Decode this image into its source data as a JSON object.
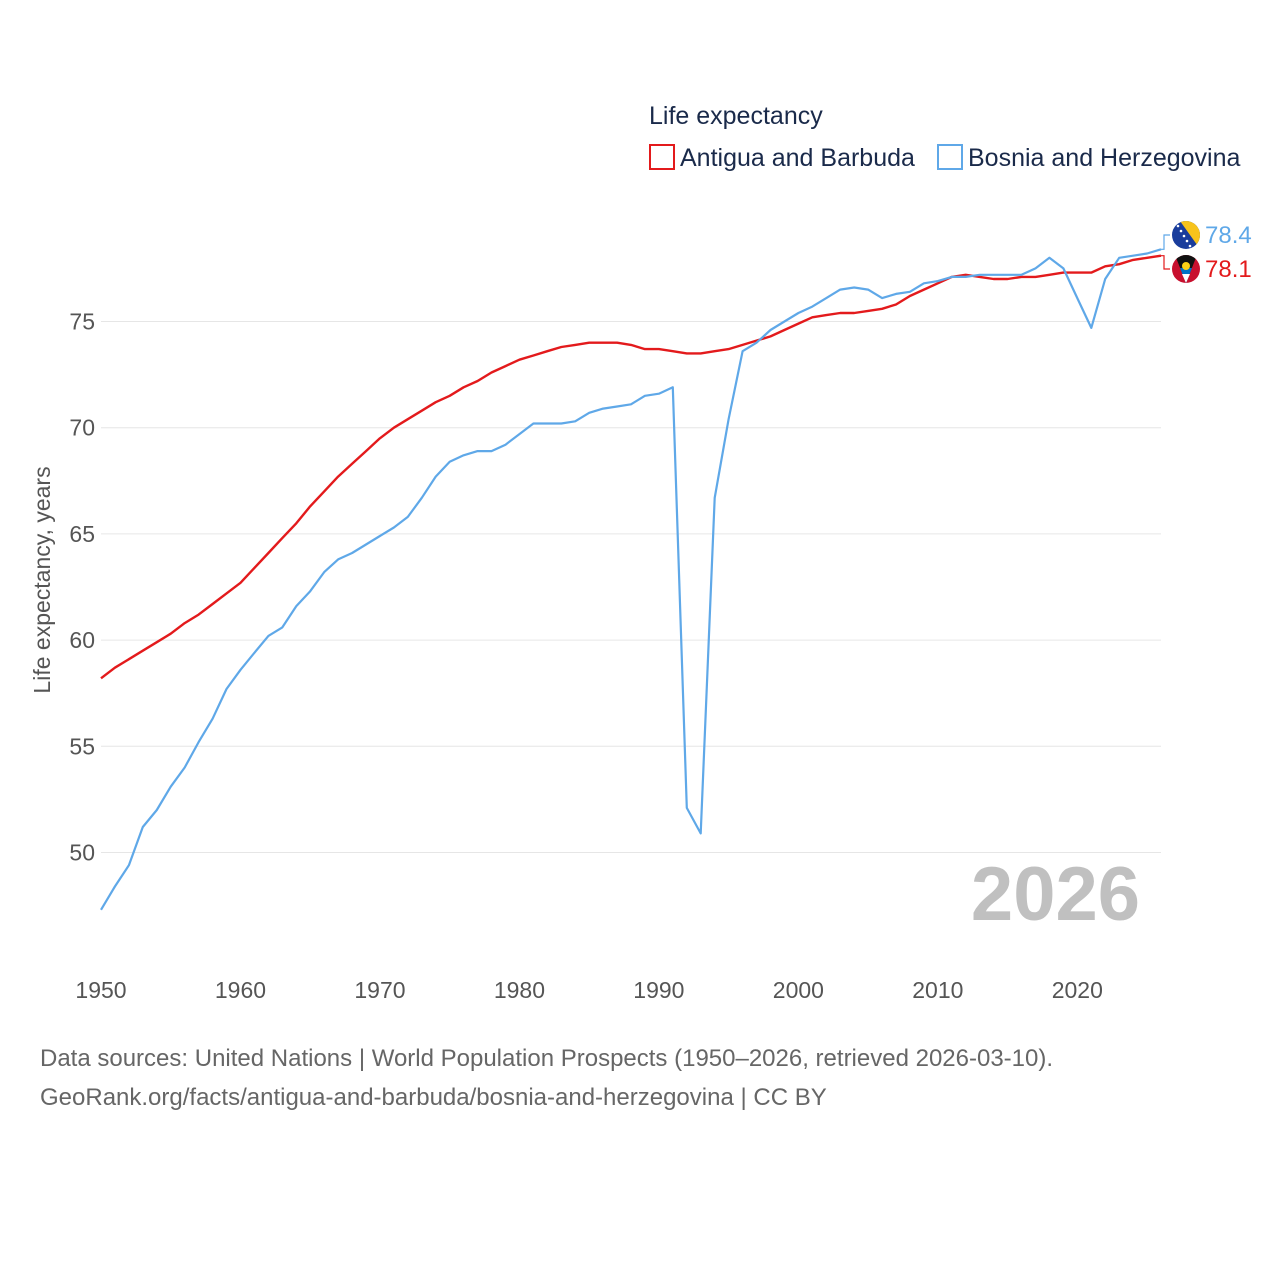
{
  "chart_data": {
    "type": "line",
    "legend_title": "Life expectancy",
    "ylabel": "Life expectancy, years",
    "xlim": [
      1950,
      2026
    ],
    "ylim": [
      46,
      81
    ],
    "yticks": [
      50,
      55,
      60,
      65,
      70,
      75
    ],
    "xticks": [
      1950,
      1960,
      1970,
      1980,
      1990,
      2000,
      2010,
      2020
    ],
    "year_label": "2026",
    "series": [
      {
        "name": "Antigua and Barbuda",
        "color": "#e31a1c",
        "end_label": "78.1",
        "x": [
          1950,
          1951,
          1952,
          1953,
          1954,
          1955,
          1956,
          1957,
          1958,
          1959,
          1960,
          1961,
          1962,
          1963,
          1964,
          1965,
          1966,
          1967,
          1968,
          1969,
          1970,
          1971,
          1972,
          1973,
          1974,
          1975,
          1976,
          1977,
          1978,
          1979,
          1980,
          1981,
          1982,
          1983,
          1984,
          1985,
          1986,
          1987,
          1988,
          1989,
          1990,
          1991,
          1992,
          1993,
          1994,
          1995,
          1996,
          1997,
          1998,
          1999,
          2000,
          2001,
          2002,
          2003,
          2004,
          2005,
          2006,
          2007,
          2008,
          2009,
          2010,
          2011,
          2012,
          2013,
          2014,
          2015,
          2016,
          2017,
          2018,
          2019,
          2020,
          2021,
          2022,
          2023,
          2024,
          2025,
          2026
        ],
        "y": [
          58.2,
          58.7,
          59.1,
          59.5,
          59.9,
          60.3,
          60.8,
          61.2,
          61.7,
          62.2,
          62.7,
          63.4,
          64.1,
          64.8,
          65.5,
          66.3,
          67.0,
          67.7,
          68.3,
          68.9,
          69.5,
          70.0,
          70.4,
          70.8,
          71.2,
          71.5,
          71.9,
          72.2,
          72.6,
          72.9,
          73.2,
          73.4,
          73.6,
          73.8,
          73.9,
          74.0,
          74.0,
          74.0,
          73.9,
          73.7,
          73.7,
          73.6,
          73.5,
          73.5,
          73.6,
          73.7,
          73.9,
          74.1,
          74.3,
          74.6,
          74.9,
          75.2,
          75.3,
          75.4,
          75.4,
          75.5,
          75.6,
          75.8,
          76.2,
          76.5,
          76.8,
          77.1,
          77.2,
          77.1,
          77.0,
          77.0,
          77.1,
          77.1,
          77.2,
          77.3,
          77.3,
          77.3,
          77.6,
          77.7,
          77.9,
          78.0,
          78.1
        ]
      },
      {
        "name": "Bosnia and Herzegovina",
        "color": "#5fa8e8",
        "end_label": "78.4",
        "x": [
          1950,
          1951,
          1952,
          1953,
          1954,
          1955,
          1956,
          1957,
          1958,
          1959,
          1960,
          1961,
          1962,
          1963,
          1964,
          1965,
          1966,
          1967,
          1968,
          1969,
          1970,
          1971,
          1972,
          1973,
          1974,
          1975,
          1976,
          1977,
          1978,
          1979,
          1980,
          1981,
          1982,
          1983,
          1984,
          1985,
          1986,
          1987,
          1988,
          1989,
          1990,
          1991,
          1992,
          1993,
          1994,
          1995,
          1996,
          1997,
          1998,
          1999,
          2000,
          2001,
          2002,
          2003,
          2004,
          2005,
          2006,
          2007,
          2008,
          2009,
          2010,
          2011,
          2012,
          2013,
          2014,
          2015,
          2016,
          2017,
          2018,
          2019,
          2020,
          2021,
          2022,
          2023,
          2024,
          2025,
          2026
        ],
        "y": [
          47.3,
          48.4,
          49.4,
          51.2,
          52.0,
          53.1,
          54.0,
          55.2,
          56.3,
          57.7,
          58.6,
          59.4,
          60.2,
          60.6,
          61.6,
          62.3,
          63.2,
          63.8,
          64.1,
          64.5,
          64.9,
          65.3,
          65.8,
          66.7,
          67.7,
          68.4,
          68.7,
          68.9,
          68.9,
          69.2,
          69.7,
          70.2,
          70.2,
          70.2,
          70.3,
          70.7,
          70.9,
          71.0,
          71.1,
          71.5,
          71.6,
          71.9,
          52.1,
          50.9,
          66.7,
          70.4,
          73.6,
          74.0,
          74.6,
          75.0,
          75.4,
          75.7,
          76.1,
          76.5,
          76.6,
          76.5,
          76.1,
          76.3,
          76.4,
          76.8,
          76.9,
          77.1,
          77.1,
          77.2,
          77.2,
          77.2,
          77.2,
          77.5,
          78.0,
          77.5,
          76.1,
          74.7,
          77.0,
          78.0,
          78.1,
          78.2,
          78.4
        ]
      }
    ]
  },
  "footer": {
    "source_line": "Data sources: United Nations | World Population Prospects (1950–2026, retrieved 2026-03-10).",
    "url_line": "GeoRank.org/facts/antigua-and-barbuda/bosnia-and-herzegovina | CC BY"
  }
}
